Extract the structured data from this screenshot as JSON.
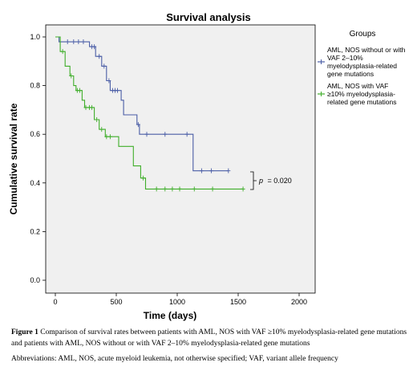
{
  "chart_data": {
    "type": "line",
    "title": "Survival analysis",
    "xlabel": "Time (days)",
    "ylabel": "Cumulative survival rate",
    "xlim": [
      0,
      2000
    ],
    "ylim": [
      0,
      1.0
    ],
    "x_ticks": [
      "0",
      "500",
      "1000",
      "1500",
      "2000"
    ],
    "y_ticks": [
      "0.0",
      "0.2",
      "0.4",
      "0.6",
      "0.8",
      "1.0"
    ],
    "legend_title": "Groups",
    "legend_position": "right",
    "annotation": {
      "p_symbol": "p",
      "p_text": "= 0.020"
    },
    "series": [
      {
        "name": "AML, NOS without or with VAF 2–10% myelodysplasia-related gene mutations",
        "legend_lines": [
          "AML, NOS without or with",
          "VAF 2–10%",
          "myelodysplasia-related",
          "gene mutations"
        ],
        "color": "#4a5da6",
        "steps": [
          [
            0,
            1.0
          ],
          [
            30,
            0.98
          ],
          [
            280,
            0.96
          ],
          [
            330,
            0.92
          ],
          [
            380,
            0.88
          ],
          [
            420,
            0.82
          ],
          [
            450,
            0.78
          ],
          [
            540,
            0.74
          ],
          [
            560,
            0.68
          ],
          [
            670,
            0.64
          ],
          [
            690,
            0.6
          ],
          [
            1130,
            0.45
          ],
          [
            1420,
            0.45
          ]
        ],
        "censors": [
          [
            100,
            0.98
          ],
          [
            150,
            0.98
          ],
          [
            190,
            0.98
          ],
          [
            230,
            0.98
          ],
          [
            300,
            0.96
          ],
          [
            320,
            0.96
          ],
          [
            360,
            0.92
          ],
          [
            400,
            0.88
          ],
          [
            440,
            0.82
          ],
          [
            470,
            0.78
          ],
          [
            490,
            0.78
          ],
          [
            510,
            0.78
          ],
          [
            680,
            0.64
          ],
          [
            750,
            0.6
          ],
          [
            900,
            0.6
          ],
          [
            1080,
            0.6
          ],
          [
            1200,
            0.45
          ],
          [
            1280,
            0.45
          ],
          [
            1420,
            0.45
          ]
        ]
      },
      {
        "name": "AML, NOS with VAF ≥10% myelodysplasia-related gene mutations",
        "legend_lines": [
          "AML, NOS with VAF",
          "≥10% myelodysplasia-",
          "related gene mutations"
        ],
        "color": "#3fae2a",
        "steps": [
          [
            0,
            1.0
          ],
          [
            40,
            0.94
          ],
          [
            80,
            0.88
          ],
          [
            120,
            0.84
          ],
          [
            150,
            0.8
          ],
          [
            170,
            0.78
          ],
          [
            220,
            0.74
          ],
          [
            240,
            0.71
          ],
          [
            320,
            0.66
          ],
          [
            360,
            0.62
          ],
          [
            410,
            0.59
          ],
          [
            520,
            0.55
          ],
          [
            640,
            0.47
          ],
          [
            700,
            0.42
          ],
          [
            740,
            0.375
          ],
          [
            1540,
            0.375
          ]
        ],
        "censors": [
          [
            60,
            0.94
          ],
          [
            130,
            0.84
          ],
          [
            180,
            0.78
          ],
          [
            200,
            0.78
          ],
          [
            250,
            0.71
          ],
          [
            280,
            0.71
          ],
          [
            300,
            0.71
          ],
          [
            340,
            0.66
          ],
          [
            380,
            0.62
          ],
          [
            420,
            0.59
          ],
          [
            450,
            0.59
          ],
          [
            720,
            0.42
          ],
          [
            830,
            0.375
          ],
          [
            900,
            0.375
          ],
          [
            960,
            0.375
          ],
          [
            1020,
            0.375
          ],
          [
            1140,
            0.375
          ],
          [
            1290,
            0.375
          ],
          [
            1540,
            0.375
          ]
        ]
      }
    ]
  },
  "captions": {
    "figure_label": "Figure 1",
    "figure_text": " Comparison of survival rates between patients with AML, NOS with VAF ≥10% myelodysplasia-related gene mutations and patients with AML, NOS without or with VAF 2–10% myelodysplasia-related gene mutations",
    "abbreviations": "Abbreviations: AML, NOS, acute myeloid leukemia, not otherwise specified; VAF, variant allele frequency"
  }
}
